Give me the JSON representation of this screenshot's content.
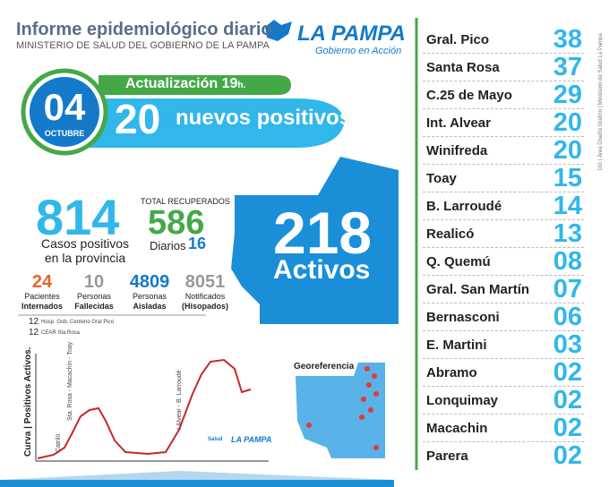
{
  "header": {
    "title": "Informe epidemiológico diario",
    "subtitle": "MINISTERIO DE SALUD DEL GOBIERNO DE LA PAMPA",
    "logo": "LA PAMPA",
    "logo_tagline": "Gobierno en Acción"
  },
  "date": {
    "day": "04",
    "month": "OCTUBRE"
  },
  "update": {
    "label": "Actualización",
    "time": "19",
    "suffix": "h."
  },
  "new_cases": {
    "value": 20,
    "label": "nuevos positivos"
  },
  "total_cases": {
    "value": 814,
    "label_1": "Casos positivos",
    "label_2": "en la provincia"
  },
  "recovered": {
    "label": "TOTAL RECUPERADOS",
    "value": 586,
    "daily_label": "Diarios",
    "daily_value": 16
  },
  "stats": [
    {
      "value": 24,
      "label_1": "Pacientes",
      "label_2": "Internados"
    },
    {
      "value": 10,
      "label_1": "Personas",
      "label_2": "Fallecidas"
    },
    {
      "value": 4809,
      "label_1": "Personas",
      "label_2": "Aisladas"
    },
    {
      "value": 8051,
      "label_1": "Notificados",
      "label_2": "(Hisopados)"
    }
  ],
  "hospitals": [
    {
      "value": 12,
      "label": "Hosp. Gob. Centeno Gral Pico"
    },
    {
      "value": 12,
      "label": "CEAR Sta.Rosa"
    }
  ],
  "active": {
    "value": 218,
    "label": "Activos"
  },
  "curve": {
    "title": "Curva | Positivos Activos.",
    "annotations": [
      "Catriló",
      "Sta. Rosa - Macachín - Toay",
      "I.Alvear - B. Larroudé"
    ],
    "footer_logo": "LA PAMPA",
    "footer_salud": "Salud"
  },
  "map_title": "Georeferencia",
  "localities": [
    {
      "name": "Gral. Pico",
      "count": "38"
    },
    {
      "name": "Santa Rosa",
      "count": "37"
    },
    {
      "name": "C.25 de Mayo",
      "count": "29"
    },
    {
      "name": "Int. Alvear",
      "count": "20"
    },
    {
      "name": "Winifreda",
      "count": "20"
    },
    {
      "name": "Toay",
      "count": "15"
    },
    {
      "name": "B. Larroudé",
      "count": "14"
    },
    {
      "name": "Realicó",
      "count": "13"
    },
    {
      "name": "Q. Quemú",
      "count": "08"
    },
    {
      "name": "Gral. San Martín",
      "count": "07"
    },
    {
      "name": "Bernasconi",
      "count": "06"
    },
    {
      "name": "E. Martini",
      "count": "03"
    },
    {
      "name": "Abramo",
      "count": "02"
    },
    {
      "name": "Lonquimay",
      "count": "02"
    },
    {
      "name": "Macachin",
      "count": "02"
    },
    {
      "name": "Parera",
      "count": "02"
    }
  ],
  "credit": "DG | Área Diseño Gráfico | Ministerio de Salud La Pampa"
}
